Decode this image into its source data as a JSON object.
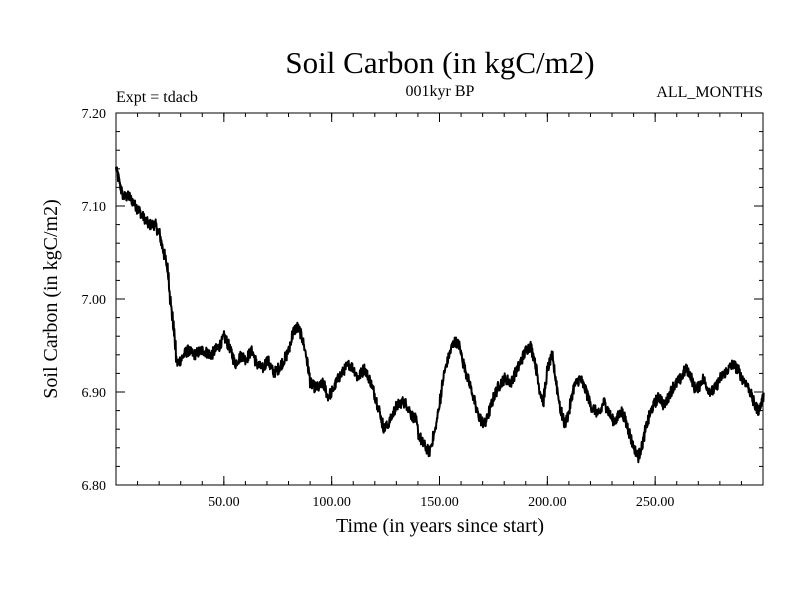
{
  "chart_data": {
    "type": "line",
    "title": "Soil Carbon (in kgC/m2)",
    "subtitle": "001kyr BP",
    "annotation_left": "Expt = tdacb",
    "annotation_right": "ALL_MONTHS",
    "xlabel": "Time (in years since start)",
    "ylabel": "Soil Carbon (in kgC/m2)",
    "xlim": [
      0,
      300
    ],
    "ylim": [
      6.8,
      7.2
    ],
    "x_ticks": [
      50,
      100,
      150,
      200,
      250
    ],
    "x_tick_labels": [
      "50.00",
      "100.00",
      "150.00",
      "200.00",
      "250.00"
    ],
    "y_ticks": [
      6.8,
      6.9,
      7.0,
      7.1,
      7.2
    ],
    "y_tick_labels": [
      "6.80",
      "6.90",
      "7.00",
      "7.10",
      "7.20"
    ],
    "x_minor_step": 10,
    "y_minor_step": 0.02,
    "noise_amplitude": 0.006,
    "series": [
      {
        "name": "Soil Carbon",
        "color": "#000000",
        "x": [
          0,
          1,
          3,
          6,
          9,
          12,
          15,
          18,
          20,
          22,
          24,
          25,
          26,
          27,
          28,
          30,
          33,
          36,
          40,
          44,
          48,
          50,
          53,
          55,
          58,
          60,
          63,
          65,
          68,
          70,
          73,
          75,
          78,
          80,
          82,
          84,
          86,
          88,
          90,
          92,
          94,
          96,
          98,
          100,
          103,
          106,
          108,
          110,
          112,
          115,
          118,
          120,
          122,
          124,
          126,
          128,
          130,
          133,
          135,
          137,
          139,
          140,
          142,
          145,
          148,
          150,
          152,
          155,
          157,
          159,
          161,
          163,
          165,
          167,
          169,
          171,
          173,
          175,
          177,
          180,
          183,
          186,
          188,
          190,
          192,
          194,
          196,
          198,
          200,
          202,
          204,
          206,
          208,
          210,
          212,
          215,
          218,
          220,
          222,
          224,
          226,
          228,
          230,
          232,
          234,
          236,
          238,
          240,
          242,
          244,
          246,
          248,
          250,
          252,
          254,
          256,
          258,
          260,
          262,
          264,
          266,
          268,
          270,
          272,
          274,
          276,
          278,
          280,
          282,
          284,
          286,
          288,
          290,
          292,
          294,
          296,
          298,
          300
        ],
        "values": [
          7.14,
          7.13,
          7.11,
          7.11,
          7.1,
          7.09,
          7.08,
          7.08,
          7.07,
          7.05,
          7.03,
          7.0,
          6.98,
          6.96,
          6.93,
          6.935,
          6.945,
          6.94,
          6.945,
          6.94,
          6.95,
          6.96,
          6.945,
          6.93,
          6.94,
          6.935,
          6.945,
          6.93,
          6.925,
          6.935,
          6.92,
          6.925,
          6.935,
          6.945,
          6.965,
          6.97,
          6.96,
          6.94,
          6.91,
          6.905,
          6.905,
          6.91,
          6.895,
          6.9,
          6.915,
          6.925,
          6.93,
          6.925,
          6.915,
          6.925,
          6.91,
          6.895,
          6.88,
          6.86,
          6.865,
          6.875,
          6.885,
          6.89,
          6.885,
          6.875,
          6.87,
          6.855,
          6.845,
          6.835,
          6.86,
          6.89,
          6.92,
          6.945,
          6.955,
          6.95,
          6.93,
          6.915,
          6.9,
          6.88,
          6.87,
          6.865,
          6.88,
          6.895,
          6.905,
          6.915,
          6.91,
          6.925,
          6.935,
          6.945,
          6.95,
          6.935,
          6.905,
          6.89,
          6.925,
          6.94,
          6.91,
          6.88,
          6.865,
          6.88,
          6.905,
          6.915,
          6.9,
          6.885,
          6.88,
          6.875,
          6.89,
          6.88,
          6.87,
          6.87,
          6.88,
          6.87,
          6.855,
          6.84,
          6.83,
          6.845,
          6.865,
          6.88,
          6.89,
          6.895,
          6.885,
          6.895,
          6.905,
          6.91,
          6.915,
          6.925,
          6.92,
          6.905,
          6.905,
          6.915,
          6.905,
          6.9,
          6.905,
          6.915,
          6.92,
          6.925,
          6.93,
          6.925,
          6.915,
          6.91,
          6.9,
          6.885,
          6.88,
          6.895
        ]
      }
    ]
  }
}
